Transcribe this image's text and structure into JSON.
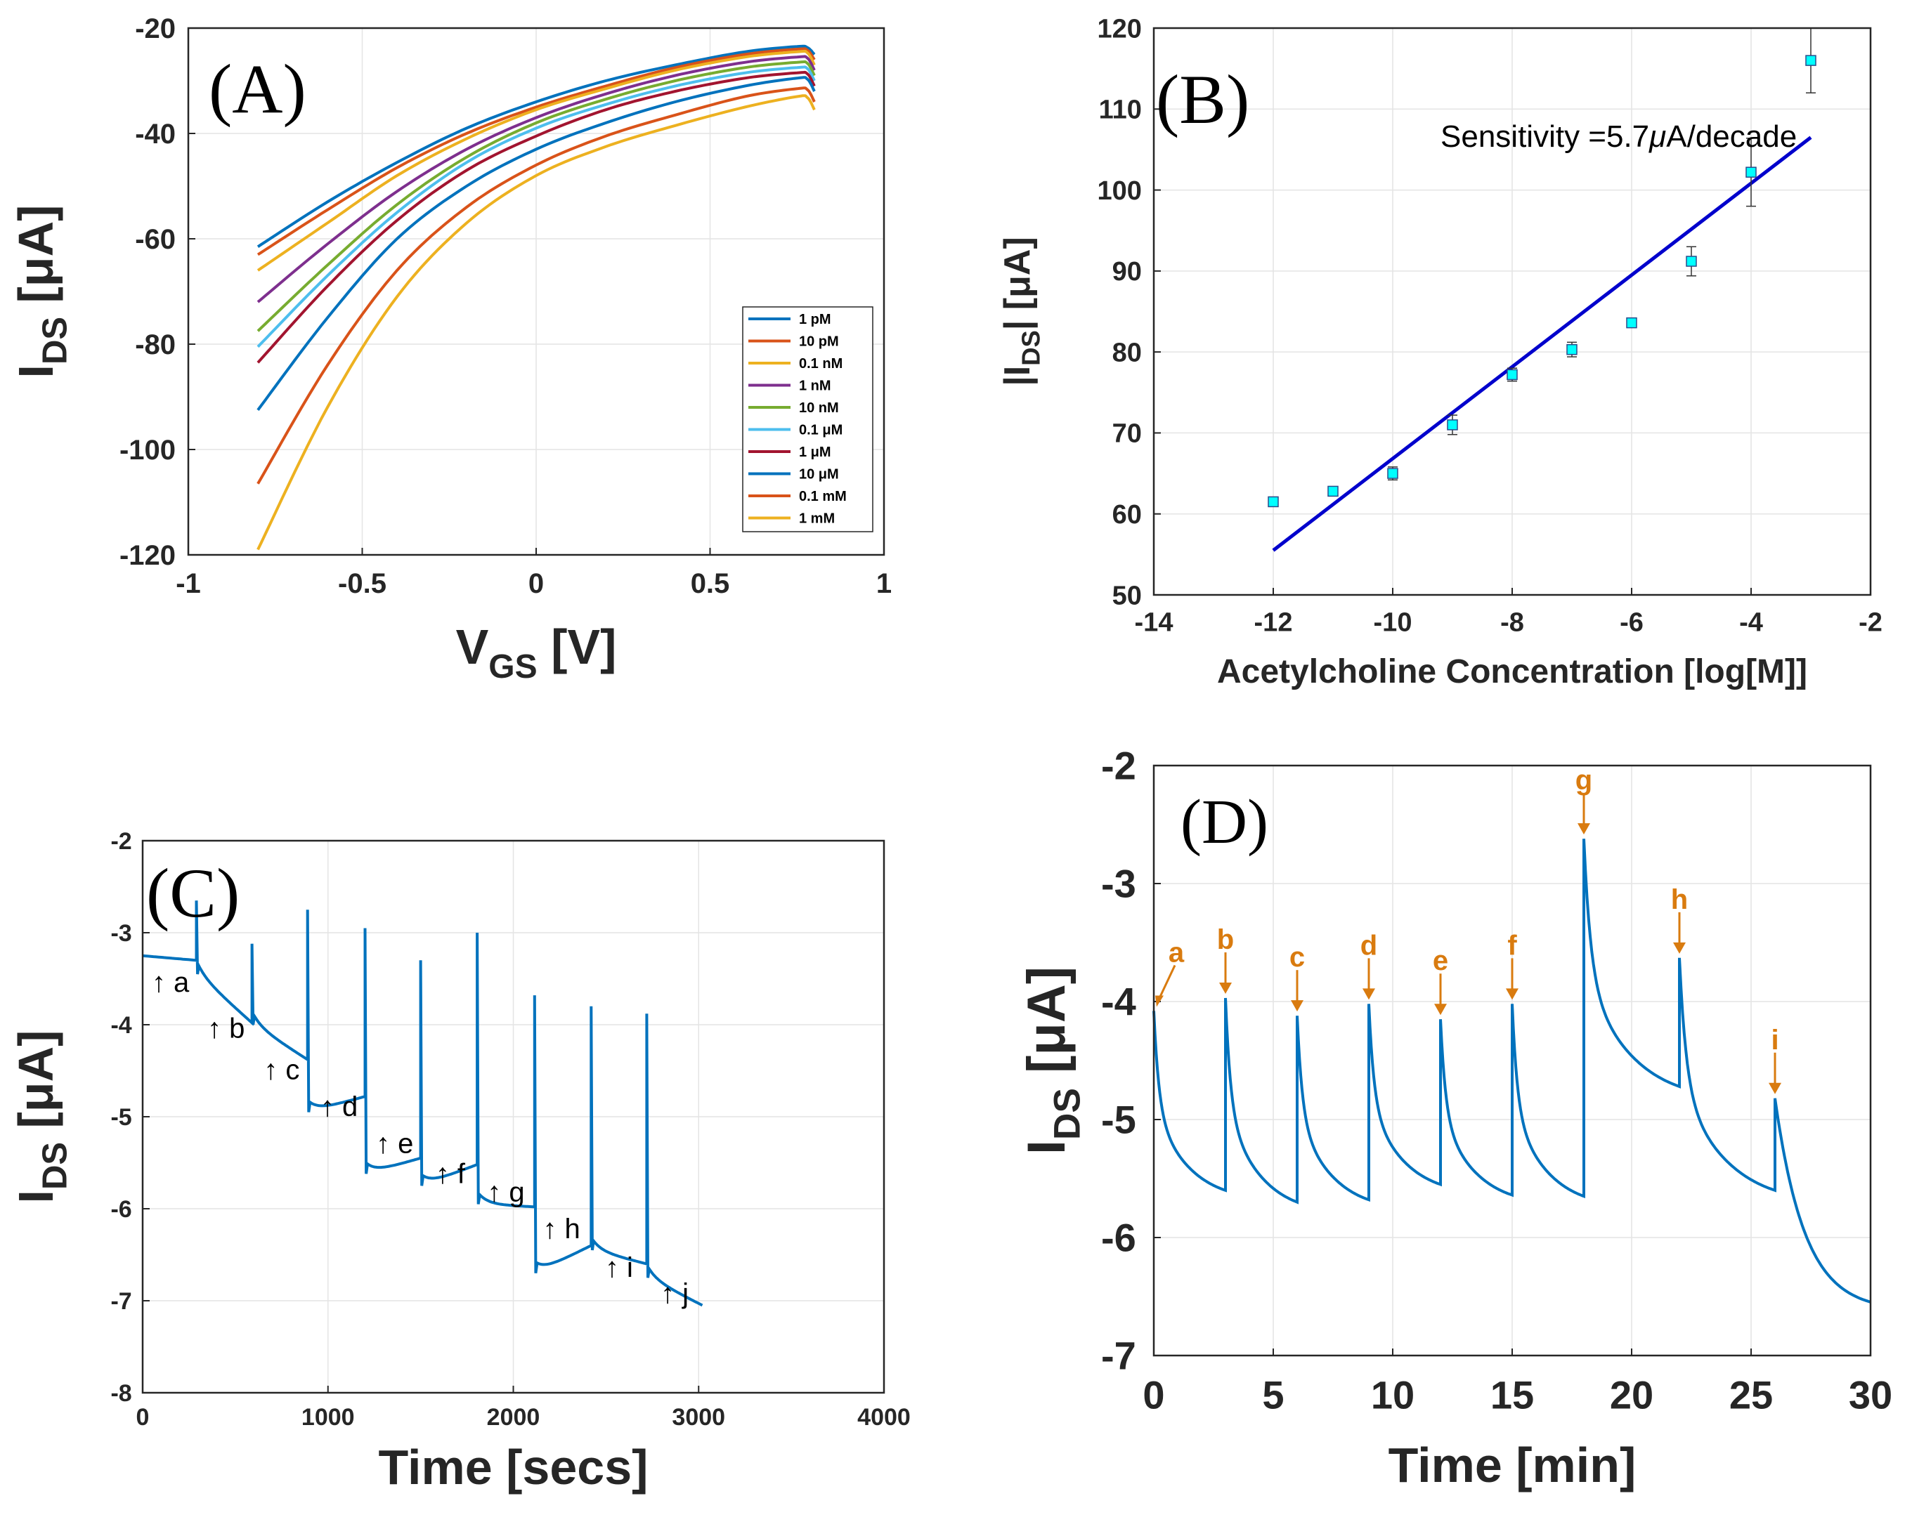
{
  "chart_data": [
    {
      "id": "A",
      "type": "line",
      "panel_label": "(A)",
      "xlabel": "V",
      "xlabel_sub": "GS",
      "xlabel_unit": " [V]",
      "ylabel": "I",
      "ylabel_sub": "DS",
      "ylabel_unit": " [μA]",
      "xlim": [
        -1,
        1
      ],
      "ylim": [
        -120,
        -20
      ],
      "xticks": [
        -1,
        -0.5,
        0,
        0.5,
        1
      ],
      "xtick_labels": [
        "-1",
        "-0.5",
        "0",
        "0.5",
        "1"
      ],
      "yticks": [
        -120,
        -100,
        -80,
        -60,
        -40,
        -20
      ],
      "ytick_labels": [
        "-120",
        "-100",
        "-80",
        "-60",
        "-40",
        "-20"
      ],
      "grid": true,
      "legend_position": "lower-right",
      "series": [
        {
          "name": "1 pM",
          "color": "#0072BD",
          "x": [
            -0.8,
            -0.6,
            -0.4,
            -0.2,
            0,
            0.2,
            0.4,
            0.6,
            0.75,
            0.78,
            0.8
          ],
          "y": [
            -61.5,
            -53,
            -45.5,
            -39,
            -34,
            -30,
            -27,
            -24.5,
            -23.5,
            -23.7,
            -25
          ]
        },
        {
          "name": "10 pM",
          "color": "#D95319",
          "x": [
            -0.8,
            -0.6,
            -0.4,
            -0.2,
            0,
            0.2,
            0.4,
            0.6,
            0.75,
            0.78,
            0.8
          ],
          "y": [
            -63,
            -54.5,
            -46.5,
            -40,
            -35,
            -31,
            -27.5,
            -25,
            -24,
            -24.2,
            -26
          ]
        },
        {
          "name": "0.1 nM",
          "color": "#EDB120",
          "x": [
            -0.8,
            -0.6,
            -0.4,
            -0.2,
            0,
            0.2,
            0.4,
            0.6,
            0.75,
            0.78,
            0.8
          ],
          "y": [
            -66,
            -57,
            -48,
            -41,
            -35.5,
            -31.5,
            -28,
            -25.5,
            -24.5,
            -24.7,
            -27
          ]
        },
        {
          "name": "1 nM",
          "color": "#7E2F8E",
          "x": [
            -0.8,
            -0.6,
            -0.4,
            -0.2,
            0,
            0.2,
            0.4,
            0.6,
            0.75,
            0.78,
            0.8
          ],
          "y": [
            -72,
            -61,
            -51,
            -43,
            -37,
            -32.5,
            -29,
            -26.5,
            -25.5,
            -25.7,
            -28
          ]
        },
        {
          "name": "10 nM",
          "color": "#77AC30",
          "x": [
            -0.8,
            -0.6,
            -0.4,
            -0.2,
            0,
            0.2,
            0.4,
            0.6,
            0.75,
            0.78,
            0.8
          ],
          "y": [
            -77.5,
            -65,
            -53.5,
            -44.5,
            -38,
            -33.5,
            -30,
            -27.5,
            -26.5,
            -26.7,
            -29
          ]
        },
        {
          "name": "0.1 μM",
          "color": "#4DBEEE",
          "x": [
            -0.8,
            -0.6,
            -0.4,
            -0.2,
            0,
            0.2,
            0.4,
            0.6,
            0.75,
            0.78,
            0.8
          ],
          "y": [
            -80.5,
            -67,
            -55,
            -45.5,
            -39,
            -34.5,
            -31,
            -28.5,
            -27.5,
            -27.7,
            -30
          ]
        },
        {
          "name": "1 μM",
          "color": "#A2142F",
          "x": [
            -0.8,
            -0.6,
            -0.4,
            -0.2,
            0,
            0.2,
            0.4,
            0.6,
            0.75,
            0.78,
            0.8
          ],
          "y": [
            -83.5,
            -69,
            -56.5,
            -47,
            -40.5,
            -35.5,
            -32,
            -29.5,
            -28.5,
            -28.7,
            -31
          ]
        },
        {
          "name": "10 μM",
          "color": "#0072BD",
          "x": [
            -0.8,
            -0.6,
            -0.4,
            -0.2,
            0,
            0.2,
            0.4,
            0.6,
            0.75,
            0.78,
            0.8
          ],
          "y": [
            -92.5,
            -75,
            -60,
            -50,
            -43,
            -38,
            -34,
            -31,
            -29.5,
            -29.7,
            -32
          ]
        },
        {
          "name": "0.1 mM",
          "color": "#D95319",
          "x": [
            -0.8,
            -0.6,
            -0.4,
            -0.2,
            0,
            0.2,
            0.4,
            0.6,
            0.75,
            0.78,
            0.8
          ],
          "y": [
            -106.5,
            -84,
            -66,
            -54,
            -46,
            -40.5,
            -36.5,
            -33,
            -31.5,
            -31.7,
            -34
          ]
        },
        {
          "name": "1 mM",
          "color": "#EDB120",
          "x": [
            -0.8,
            -0.6,
            -0.4,
            -0.2,
            0,
            0.2,
            0.4,
            0.6,
            0.75,
            0.78,
            0.8
          ],
          "y": [
            -119,
            -92,
            -71,
            -57,
            -48,
            -42.5,
            -38.5,
            -35,
            -33,
            -33.2,
            -35.5
          ]
        }
      ]
    },
    {
      "id": "B",
      "type": "scatter",
      "panel_label": "(B)",
      "xlabel": "Acetylcholine Concentration [log[M]]",
      "ylabel": "|I",
      "ylabel_sub": "DS",
      "ylabel_unit": "| [μA]",
      "xlim": [
        -14,
        -2
      ],
      "ylim": [
        50,
        120
      ],
      "xticks": [
        -14,
        -12,
        -10,
        -8,
        -6,
        -4,
        -2
      ],
      "xtick_labels": [
        "-14",
        "-12",
        "-10",
        "-8",
        "-6",
        "-4",
        "-2"
      ],
      "yticks": [
        50,
        60,
        70,
        80,
        90,
        100,
        110,
        120
      ],
      "ytick_labels": [
        "50",
        "60",
        "70",
        "80",
        "90",
        "100",
        "110",
        "120"
      ],
      "grid": true,
      "annotation_prefix": "Sensitivity =5.7",
      "annotation_mu": "μ",
      "annotation_suffix": "A/decade",
      "marker_color": "#00FFFF",
      "fit_color": "#0000CC",
      "points": {
        "x": [
          -12,
          -11,
          -10,
          -9,
          -8,
          -7,
          -6,
          -5,
          -4,
          -3
        ],
        "y": [
          61.5,
          62.8,
          65,
          71,
          77.2,
          80.3,
          83.6,
          91.2,
          102.2,
          116
        ],
        "err": [
          0.3,
          0.3,
          0.8,
          1.2,
          0.8,
          0.9,
          0.3,
          1.8,
          4.2,
          4
        ]
      },
      "fit": {
        "x": [
          -12,
          -3
        ],
        "y": [
          55.5,
          106.5
        ]
      }
    },
    {
      "id": "C",
      "type": "line",
      "panel_label": "(C)",
      "xlabel": "Time [secs]",
      "ylabel": "I",
      "ylabel_sub": "DS",
      "ylabel_unit": " [μA]",
      "xlim": [
        0,
        4000
      ],
      "ylim": [
        -8,
        -2
      ],
      "xticks": [
        0,
        1000,
        2000,
        3000,
        4000
      ],
      "xtick_labels": [
        "0",
        "1000",
        "2000",
        "3000",
        "4000"
      ],
      "yticks": [
        -8,
        -7,
        -6,
        -5,
        -4,
        -3,
        -2
      ],
      "ytick_labels": [
        "-8",
        "-7",
        "-6",
        "-5",
        "-4",
        "-3",
        "-2"
      ],
      "grid": true,
      "line_color": "#0072BD",
      "segments": [
        {
          "t0": 0,
          "t1": 290,
          "start": -3.25,
          "end": -3.3,
          "dip": -3.3
        },
        {
          "t0": 290,
          "t1": 590,
          "start": -2.65,
          "end": -3.98,
          "dip": -3.45
        },
        {
          "t0": 590,
          "t1": 890,
          "start": -3.12,
          "end": -4.38,
          "dip": -4.0
        },
        {
          "t0": 890,
          "t1": 1200,
          "start": -2.75,
          "end": -4.78,
          "dip": -4.95
        },
        {
          "t0": 1200,
          "t1": 1500,
          "start": -2.95,
          "end": -5.45,
          "dip": -5.62
        },
        {
          "t0": 1500,
          "t1": 1805,
          "start": -3.3,
          "end": -5.52,
          "dip": -5.75
        },
        {
          "t0": 1805,
          "t1": 2115,
          "start": -3.0,
          "end": -5.98,
          "dip": -5.95
        },
        {
          "t0": 2115,
          "t1": 2420,
          "start": -3.68,
          "end": -6.4,
          "dip": -6.7
        },
        {
          "t0": 2420,
          "t1": 2720,
          "start": -3.8,
          "end": -6.6,
          "dip": -6.45
        },
        {
          "t0": 2720,
          "t1": 3020,
          "start": -3.88,
          "end": -7.05,
          "dip": -6.75
        }
      ],
      "markers": [
        {
          "label": "a",
          "t": 150,
          "y": -3.55
        },
        {
          "label": "b",
          "t": 450,
          "y": -4.05
        },
        {
          "label": "c",
          "t": 750,
          "y": -4.5
        },
        {
          "label": "d",
          "t": 1060,
          "y": -4.9
        },
        {
          "label": "e",
          "t": 1360,
          "y": -5.3
        },
        {
          "label": "f",
          "t": 1660,
          "y": -5.63
        },
        {
          "label": "g",
          "t": 1960,
          "y": -5.83
        },
        {
          "label": "h",
          "t": 2260,
          "y": -6.23
        },
        {
          "label": "i",
          "t": 2570,
          "y": -6.65
        },
        {
          "label": "j",
          "t": 2870,
          "y": -6.93
        }
      ]
    },
    {
      "id": "D",
      "type": "line",
      "panel_label": "(D)",
      "xlabel": "Time [min]",
      "ylabel": "I",
      "ylabel_sub": "DS",
      "ylabel_unit": " [μA]",
      "xlim": [
        0,
        30
      ],
      "ylim": [
        -7,
        -2
      ],
      "xticks": [
        0,
        5,
        10,
        15,
        20,
        25,
        30
      ],
      "xtick_labels": [
        "0",
        "5",
        "10",
        "15",
        "20",
        "25",
        "30"
      ],
      "yticks": [
        -7,
        -6,
        -5,
        -4,
        -3,
        -2
      ],
      "ytick_labels": [
        "-7",
        "-6",
        "-5",
        "-4",
        "-3",
        "-2"
      ],
      "grid": true,
      "line_color": "#0072BD",
      "annotation_color": "#D97B0F",
      "segments": [
        {
          "t0": 0,
          "t1": 3,
          "start": -4.08,
          "end": -5.6
        },
        {
          "t0": 3,
          "t1": 6,
          "start": -3.97,
          "end": -5.7
        },
        {
          "t0": 6,
          "t1": 9,
          "start": -4.12,
          "end": -5.68
        },
        {
          "t0": 9,
          "t1": 12,
          "start": -4.02,
          "end": -5.55
        },
        {
          "t0": 12,
          "t1": 15,
          "start": -4.15,
          "end": -5.64
        },
        {
          "t0": 15,
          "t1": 18,
          "start": -4.02,
          "end": -5.65
        },
        {
          "t0": 18,
          "t1": 22,
          "start": -2.62,
          "end": -4.72
        },
        {
          "t0": 22,
          "t1": 26,
          "start": -3.63,
          "end": -5.6
        },
        {
          "t0": 26,
          "t1": 30,
          "start": -4.82,
          "end": -6.62
        }
      ],
      "markers": [
        {
          "label": "a",
          "t": 0,
          "y": -4.08
        },
        {
          "label": "b",
          "t": 3,
          "y": -3.97
        },
        {
          "label": "c",
          "t": 6,
          "y": -4.12
        },
        {
          "label": "d",
          "t": 9,
          "y": -4.02
        },
        {
          "label": "e",
          "t": 12,
          "y": -4.15
        },
        {
          "label": "f",
          "t": 15,
          "y": -4.02
        },
        {
          "label": "g",
          "t": 18,
          "y": -2.62
        },
        {
          "label": "h",
          "t": 22,
          "y": -3.63
        },
        {
          "label": "i",
          "t": 26,
          "y": -4.82
        }
      ]
    }
  ]
}
